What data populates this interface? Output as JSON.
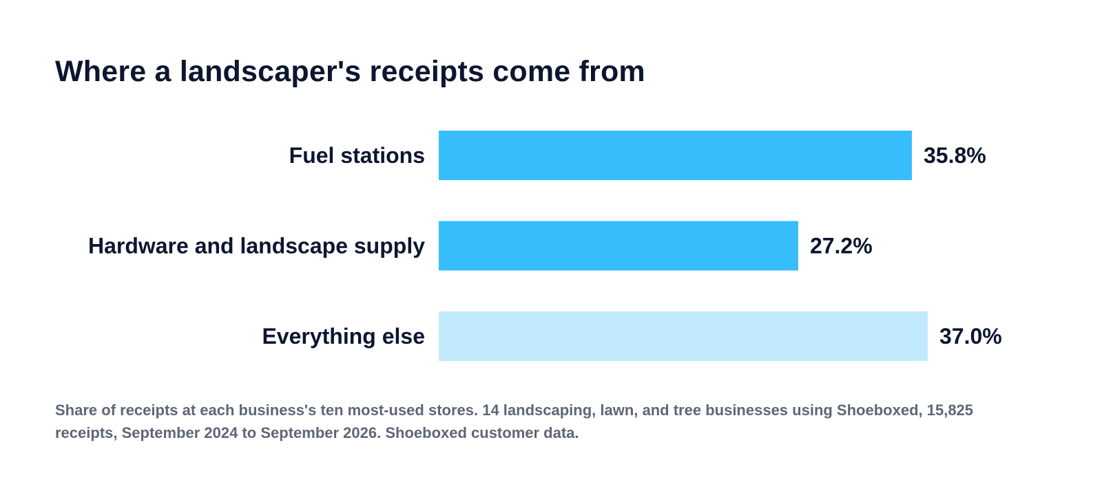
{
  "colors": {
    "title": "#0d1630",
    "label": "#0d1630",
    "footnote": "#5e6677",
    "bar_primary": "#38bdfc",
    "bar_secondary": "#c1e9fd",
    "background": "#ffffff"
  },
  "footnote": "Share of receipts at each business's ten most-used stores. 14 landscaping, lawn, and tree businesses using Shoeboxed, 15,825 receipts, September 2024 to September 2026. Shoeboxed customer data.",
  "chart_data": {
    "type": "bar",
    "orientation": "horizontal",
    "title": "Where a landscaper's receipts come from",
    "xlabel": "",
    "ylabel": "",
    "xlim": [
      0,
      37.0
    ],
    "grid": false,
    "legend": "none",
    "categories": [
      "Fuel stations",
      "Hardware and landscape supply",
      "Everything else"
    ],
    "values": [
      35.8,
      27.2,
      37.0
    ],
    "value_labels": [
      "35.8%",
      "27.2%",
      "37.0%"
    ],
    "bar_colors": [
      "#38bdfc",
      "#38bdfc",
      "#c1e9fd"
    ]
  }
}
